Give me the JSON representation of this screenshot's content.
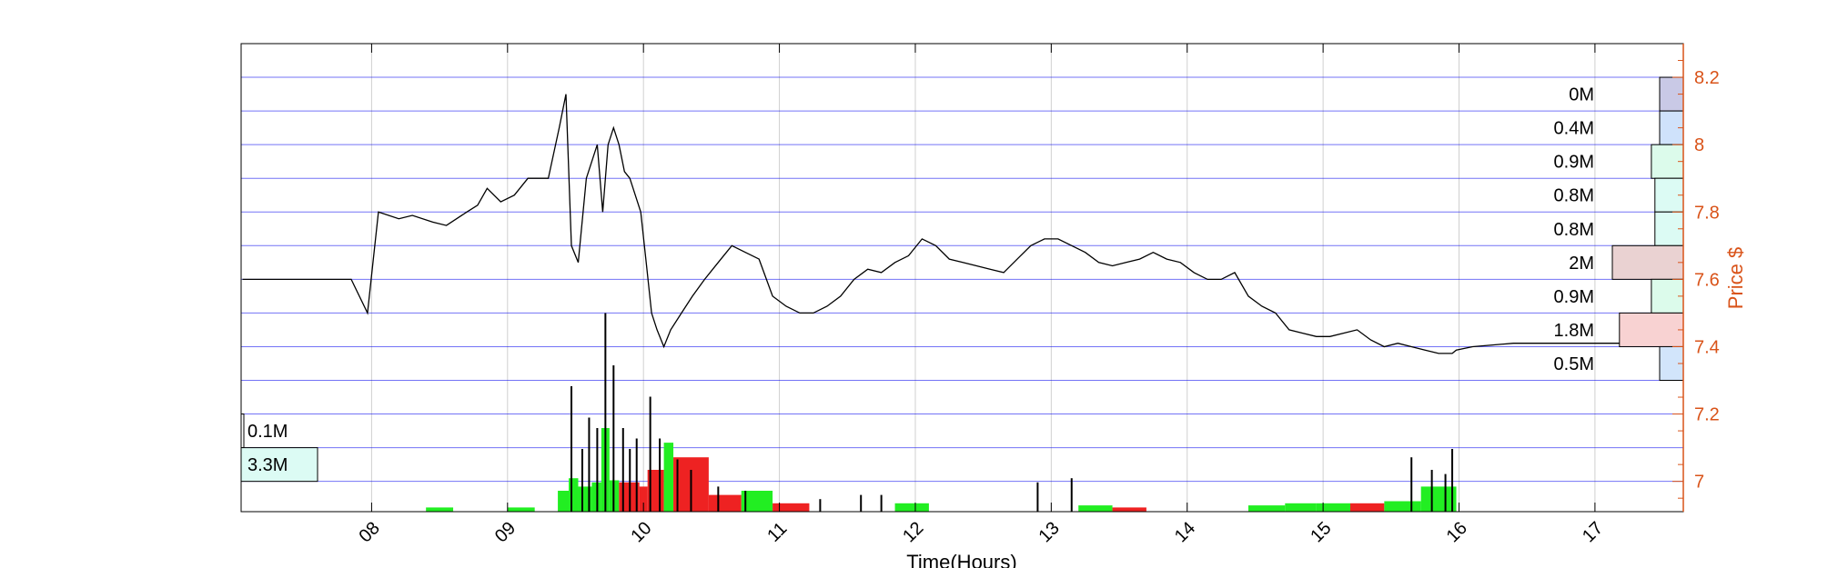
{
  "chart_data": {
    "type": "line",
    "title": "",
    "xlabel": "Time(Hours)",
    "ylabel": "Price $",
    "x_tick_labels": [
      "08",
      "09",
      "10",
      "11",
      "12",
      "13",
      "14",
      "15",
      "16",
      "17"
    ],
    "x_ticks": [
      8,
      9,
      10,
      11,
      12,
      13,
      14,
      15,
      16,
      17
    ],
    "xlim": [
      7.04,
      17.65
    ],
    "y_tick_labels": [
      "7",
      "7.2",
      "7.4",
      "7.6",
      "7.8",
      "8",
      "8.2"
    ],
    "y_ticks": [
      7.0,
      7.2,
      7.4,
      7.6,
      7.8,
      8.0,
      8.2
    ],
    "ylim": [
      6.91,
      8.3
    ],
    "grid": true,
    "price_series": {
      "name": "",
      "x": [
        7.05,
        7.8,
        7.85,
        7.97,
        8.05,
        8.2,
        8.3,
        8.45,
        8.55,
        8.7,
        8.78,
        8.85,
        8.95,
        9.05,
        9.15,
        9.3,
        9.38,
        9.43,
        9.47,
        9.52,
        9.58,
        9.62,
        9.66,
        9.7,
        9.74,
        9.78,
        9.82,
        9.86,
        9.9,
        9.94,
        9.98,
        10.02,
        10.06,
        10.1,
        10.15,
        10.2,
        10.28,
        10.36,
        10.45,
        10.55,
        10.65,
        10.75,
        10.85,
        10.95,
        11.05,
        11.15,
        11.25,
        11.35,
        11.45,
        11.55,
        11.65,
        11.75,
        11.85,
        11.95,
        12.05,
        12.15,
        12.25,
        12.35,
        12.45,
        12.55,
        12.65,
        12.75,
        12.85,
        12.95,
        13.05,
        13.15,
        13.25,
        13.35,
        13.45,
        13.55,
        13.65,
        13.75,
        13.85,
        13.95,
        14.05,
        14.15,
        14.25,
        14.35,
        14.45,
        14.55,
        14.65,
        14.75,
        14.85,
        14.95,
        15.05,
        15.15,
        15.25,
        15.35,
        15.45,
        15.55,
        15.65,
        15.75,
        15.85,
        15.95,
        15.98,
        16.1,
        16.4,
        16.8,
        17.1,
        17.5
      ],
      "y": [
        7.6,
        7.6,
        7.6,
        7.5,
        7.8,
        7.78,
        7.79,
        7.77,
        7.76,
        7.8,
        7.82,
        7.87,
        7.83,
        7.85,
        7.9,
        7.9,
        8.05,
        8.15,
        7.7,
        7.65,
        7.9,
        7.95,
        8.0,
        7.8,
        8.0,
        8.05,
        8.0,
        7.92,
        7.9,
        7.85,
        7.8,
        7.65,
        7.5,
        7.45,
        7.4,
        7.45,
        7.5,
        7.55,
        7.6,
        7.65,
        7.7,
        7.68,
        7.66,
        7.55,
        7.52,
        7.5,
        7.5,
        7.52,
        7.55,
        7.6,
        7.63,
        7.62,
        7.65,
        7.67,
        7.72,
        7.7,
        7.66,
        7.65,
        7.64,
        7.63,
        7.62,
        7.66,
        7.7,
        7.72,
        7.72,
        7.7,
        7.68,
        7.65,
        7.64,
        7.65,
        7.66,
        7.68,
        7.66,
        7.65,
        7.62,
        7.6,
        7.6,
        7.62,
        7.55,
        7.52,
        7.5,
        7.45,
        7.44,
        7.43,
        7.43,
        7.44,
        7.45,
        7.42,
        7.4,
        7.41,
        7.4,
        7.39,
        7.38,
        7.38,
        7.39,
        7.4,
        7.41,
        7.41,
        7.41,
        7.41
      ]
    },
    "volume_profile": [
      {
        "price_low": 8.1,
        "price_high": 8.2,
        "label": "0M",
        "value_m": 0.15,
        "color": "#c9c9e6"
      },
      {
        "price_low": 8.0,
        "price_high": 8.1,
        "label": "0.4M",
        "value_m": 0.4,
        "color": "#cfe2fb"
      },
      {
        "price_low": 7.9,
        "price_high": 8.0,
        "label": "0.9M",
        "value_m": 0.9,
        "color": "#dcfbeb"
      },
      {
        "price_low": 7.8,
        "price_high": 7.9,
        "label": "0.8M",
        "value_m": 0.8,
        "color": "#dcfbf4"
      },
      {
        "price_low": 7.7,
        "price_high": 7.8,
        "label": "0.8M",
        "value_m": 0.8,
        "color": "#dcfbf4"
      },
      {
        "price_low": 7.6,
        "price_high": 7.7,
        "label": "2M",
        "value_m": 2.0,
        "color": "#ead2d2"
      },
      {
        "price_low": 7.5,
        "price_high": 7.6,
        "label": "0.9M",
        "value_m": 0.9,
        "color": "#dcfbeb"
      },
      {
        "price_low": 7.4,
        "price_high": 7.5,
        "label": "1.8M",
        "value_m": 1.8,
        "color": "#f8d2d2"
      },
      {
        "price_low": 7.3,
        "price_high": 7.4,
        "label": "0.5M",
        "value_m": 0.5,
        "color": "#d2e5fb"
      }
    ],
    "lower_profile": [
      {
        "price_low": 7.1,
        "price_high": 7.2,
        "label": "0.1M",
        "value_m": 0.1,
        "color": "#ffffff"
      },
      {
        "price_low": 7.0,
        "price_high": 7.1,
        "label": "3.3M",
        "value_m": 3.3,
        "color": "#dcfbf4"
      }
    ],
    "volume_bars_30min": [
      {
        "start": 8.4,
        "end": 8.6,
        "value": 0.02,
        "color": "#22ee22"
      },
      {
        "start": 9.0,
        "end": 9.2,
        "value": 0.02,
        "color": "#22ee22"
      },
      {
        "start": 9.37,
        "end": 9.45,
        "value": 0.1,
        "color": "#22ee22"
      },
      {
        "start": 9.45,
        "end": 9.52,
        "value": 0.16,
        "color": "#22ee22"
      },
      {
        "start": 9.52,
        "end": 9.62,
        "value": 0.12,
        "color": "#22ee22"
      },
      {
        "start": 9.62,
        "end": 9.69,
        "value": 0.14,
        "color": "#22ee22"
      },
      {
        "start": 9.69,
        "end": 9.75,
        "value": 0.4,
        "color": "#22ee22"
      },
      {
        "start": 9.75,
        "end": 9.82,
        "value": 0.15,
        "color": "#22ee22"
      },
      {
        "start": 9.82,
        "end": 9.97,
        "value": 0.14,
        "color": "#ee2222"
      },
      {
        "start": 9.97,
        "end": 10.03,
        "value": 0.12,
        "color": "#ee2222"
      },
      {
        "start": 10.03,
        "end": 10.15,
        "value": 0.2,
        "color": "#ee2222"
      },
      {
        "start": 10.15,
        "end": 10.22,
        "value": 0.33,
        "color": "#22ee22"
      },
      {
        "start": 10.22,
        "end": 10.48,
        "value": 0.26,
        "color": "#ee2222"
      },
      {
        "start": 10.48,
        "end": 10.72,
        "value": 0.08,
        "color": "#ee2222"
      },
      {
        "start": 10.72,
        "end": 10.95,
        "value": 0.1,
        "color": "#22ee22"
      },
      {
        "start": 10.95,
        "end": 11.22,
        "value": 0.04,
        "color": "#ee2222"
      },
      {
        "start": 11.85,
        "end": 12.1,
        "value": 0.04,
        "color": "#22ee22"
      },
      {
        "start": 13.2,
        "end": 13.45,
        "value": 0.03,
        "color": "#22ee22"
      },
      {
        "start": 13.45,
        "end": 13.7,
        "value": 0.02,
        "color": "#ee2222"
      },
      {
        "start": 14.45,
        "end": 14.72,
        "value": 0.03,
        "color": "#22ee22"
      },
      {
        "start": 14.72,
        "end": 14.95,
        "value": 0.04,
        "color": "#22ee22"
      },
      {
        "start": 14.95,
        "end": 15.2,
        "value": 0.04,
        "color": "#22ee22"
      },
      {
        "start": 15.2,
        "end": 15.45,
        "value": 0.04,
        "color": "#ee2222"
      },
      {
        "start": 15.45,
        "end": 15.72,
        "value": 0.05,
        "color": "#22ee22"
      },
      {
        "start": 15.72,
        "end": 15.98,
        "value": 0.12,
        "color": "#22ee22"
      }
    ],
    "volume_spikes": {
      "x": [
        9.47,
        9.55,
        9.6,
        9.66,
        9.72,
        9.78,
        9.85,
        9.9,
        9.95,
        10.05,
        10.12,
        10.25,
        10.35,
        10.55,
        10.75,
        11.3,
        11.6,
        11.75,
        12.9,
        13.15,
        15.65,
        15.8,
        15.9,
        15.95
      ],
      "v": [
        0.6,
        0.3,
        0.45,
        0.4,
        0.95,
        0.7,
        0.4,
        0.3,
        0.35,
        0.55,
        0.35,
        0.25,
        0.2,
        0.12,
        0.1,
        0.06,
        0.08,
        0.08,
        0.14,
        0.16,
        0.26,
        0.2,
        0.18,
        0.3
      ]
    },
    "colors": {
      "price_axis": "#d95319",
      "grid_major": "#0000ee",
      "grid_minor": "#d0d0d0",
      "axes_frame": "#000000",
      "price_line": "#000000"
    }
  }
}
